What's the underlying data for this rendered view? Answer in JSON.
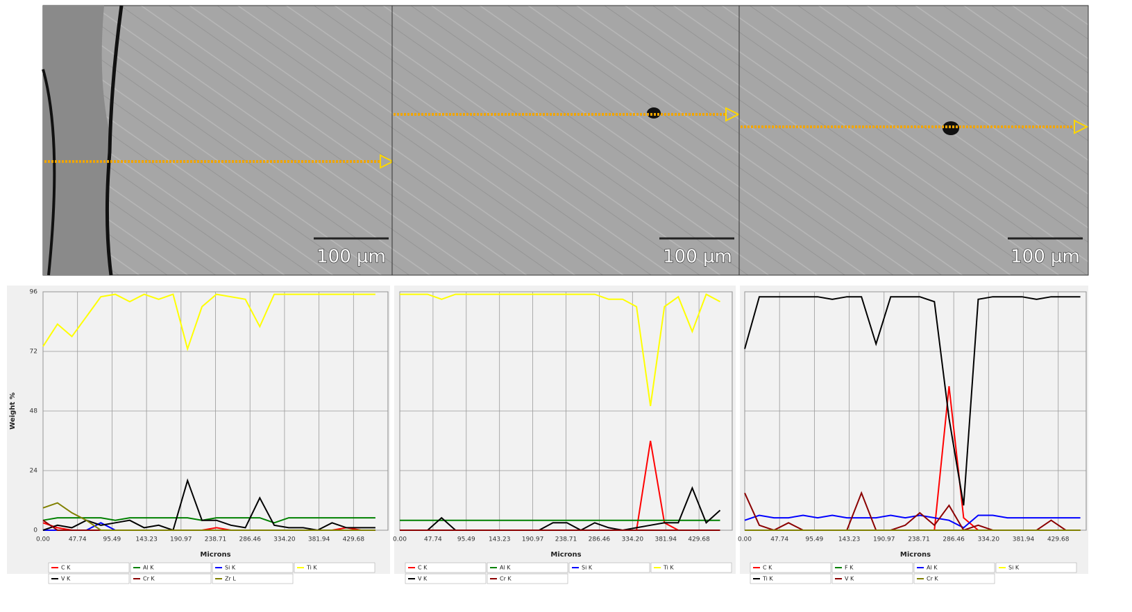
{
  "images": [
    {
      "scale_label": "100 µm"
    },
    {
      "scale_label": "100 µm"
    },
    {
      "scale_label": "100 µm"
    }
  ],
  "chart_data": [
    {
      "type": "line",
      "ylabel": "Weight %",
      "xlabel": "Microns",
      "ytick_labels": true,
      "xlim": [
        0,
        477.4
      ],
      "ylim": [
        0,
        96
      ],
      "yticks": [
        0,
        24,
        48,
        72,
        96
      ],
      "xticks": [
        {
          "value": 0,
          "label": "0.00"
        },
        47.74,
        95.49,
        143.23,
        190.97,
        238.71,
        286.46,
        {
          "value": 334.2,
          "label": "334.20"
        },
        381.94,
        429.68
      ],
      "x": [
        0,
        20,
        40,
        60,
        80,
        100,
        120,
        140,
        160,
        180,
        200,
        220,
        240,
        260,
        280,
        300,
        320,
        340,
        360,
        380,
        400,
        420,
        440,
        460
      ],
      "series": [
        {
          "name": "C K",
          "color": "#ff0000",
          "values": [
            3,
            1,
            0,
            0,
            0,
            0,
            0,
            0,
            0,
            0,
            0,
            0,
            1,
            0,
            0,
            0,
            0,
            0,
            0,
            0,
            0,
            1,
            0,
            0
          ]
        },
        {
          "name": "Al K",
          "color": "#008000",
          "values": [
            4,
            5,
            5,
            5,
            5,
            4,
            5,
            5,
            5,
            5,
            5,
            4,
            5,
            5,
            5,
            5,
            3,
            5,
            5,
            5,
            5,
            5,
            5,
            5
          ]
        },
        {
          "name": "Si K",
          "color": "#0000ff",
          "values": [
            0,
            0,
            0,
            0,
            3,
            0,
            0,
            0,
            0,
            0,
            0,
            0,
            0,
            0,
            0,
            0,
            0,
            0,
            0,
            0,
            0,
            0,
            0,
            0
          ]
        },
        {
          "name": "Ti K",
          "color": "#ffff00",
          "values": [
            74,
            83,
            78,
            86,
            94,
            95,
            92,
            95,
            93,
            95,
            73,
            90,
            95,
            94,
            93,
            82,
            95,
            95,
            95,
            95,
            95,
            95,
            95,
            95
          ]
        },
        {
          "name": "V K",
          "color": "#000000",
          "values": [
            0,
            2,
            1,
            4,
            2,
            3,
            4,
            1,
            2,
            0,
            20,
            4,
            4,
            2,
            1,
            13,
            2,
            1,
            1,
            0,
            3,
            1,
            1,
            1
          ]
        },
        {
          "name": "Cr K",
          "color": "#8b0000",
          "values": [
            4,
            0,
            0,
            0,
            0,
            0,
            0,
            0,
            0,
            0,
            0,
            0,
            0,
            0,
            0,
            0,
            0,
            0,
            0,
            0,
            0,
            0,
            0,
            0
          ]
        },
        {
          "name": "Zr L",
          "color": "#808000",
          "values": [
            9,
            11,
            7,
            4,
            0,
            0,
            0,
            0,
            0,
            0,
            0,
            0,
            0,
            0,
            0,
            0,
            0,
            0,
            0,
            0,
            0,
            0,
            0,
            0
          ]
        }
      ]
    },
    {
      "type": "line",
      "xlabel": "Microns",
      "ytick_labels": false,
      "xlim": [
        0,
        477.4
      ],
      "ylim": [
        0,
        96
      ],
      "yticks": [
        0,
        24,
        48,
        72,
        96
      ],
      "xticks": [
        {
          "value": 0,
          "label": "0.00"
        },
        47.74,
        95.49,
        143.23,
        190.97,
        238.71,
        286.46,
        {
          "value": 334.2,
          "label": "334.20"
        },
        381.94,
        429.68
      ],
      "x": [
        0,
        20,
        40,
        60,
        80,
        100,
        120,
        140,
        160,
        180,
        200,
        220,
        240,
        260,
        280,
        300,
        320,
        340,
        360,
        380,
        400,
        420,
        440,
        460
      ],
      "series": [
        {
          "name": "C K",
          "color": "#ff0000",
          "values": [
            0,
            0,
            0,
            0,
            0,
            0,
            0,
            0,
            0,
            0,
            0,
            0,
            0,
            0,
            0,
            0,
            0,
            0,
            36,
            3,
            0,
            0,
            0,
            0
          ]
        },
        {
          "name": "Al K",
          "color": "#008000",
          "values": [
            4,
            4,
            4,
            4,
            4,
            4,
            4,
            4,
            4,
            4,
            4,
            4,
            4,
            4,
            4,
            4,
            4,
            4,
            4,
            4,
            4,
            4,
            4,
            4
          ]
        },
        {
          "name": "Si K",
          "color": "#0000ff",
          "values": [
            0,
            0,
            0,
            0,
            0,
            0,
            0,
            0,
            0,
            0,
            0,
            0,
            0,
            0,
            0,
            0,
            0,
            0,
            0,
            0,
            0,
            0,
            0,
            0
          ]
        },
        {
          "name": "Ti K",
          "color": "#ffff00",
          "values": [
            95,
            95,
            95,
            93,
            95,
            95,
            95,
            95,
            95,
            95,
            95,
            95,
            95,
            95,
            95,
            93,
            93,
            90,
            50,
            90,
            94,
            80,
            95,
            92
          ]
        },
        {
          "name": "V K",
          "color": "#000000",
          "values": [
            0,
            0,
            0,
            5,
            0,
            0,
            0,
            0,
            0,
            0,
            0,
            3,
            3,
            0,
            3,
            1,
            0,
            1,
            2,
            3,
            3,
            17,
            3,
            8
          ]
        },
        {
          "name": "Cr K",
          "color": "#8b0000",
          "values": [
            0,
            0,
            0,
            0,
            0,
            0,
            0,
            0,
            0,
            0,
            0,
            0,
            0,
            0,
            0,
            0,
            0,
            0,
            0,
            0,
            0,
            0,
            0,
            0
          ]
        }
      ]
    },
    {
      "type": "line",
      "xlabel": "Microns",
      "ytick_labels": false,
      "xlim": [
        0,
        468
      ],
      "ylim": [
        0,
        96
      ],
      "yticks": [
        0,
        24,
        48,
        72,
        96
      ],
      "xticks": [
        {
          "value": 0,
          "label": "0.00"
        },
        47.74,
        95.49,
        143.23,
        190.97,
        238.71,
        286.46,
        {
          "value": 334.2,
          "label": "334.20"
        },
        381.94,
        429.68
      ],
      "x": [
        0,
        20,
        40,
        60,
        80,
        100,
        120,
        140,
        160,
        180,
        200,
        220,
        240,
        260,
        280,
        300,
        320,
        340,
        360,
        380,
        400,
        420,
        440,
        460
      ],
      "series": [
        {
          "name": "C K",
          "color": "#ff0000",
          "values": [
            0,
            0,
            0,
            0,
            0,
            0,
            0,
            0,
            0,
            0,
            0,
            0,
            0,
            0,
            58,
            5,
            0,
            0,
            0,
            0,
            0,
            0,
            0,
            0
          ]
        },
        {
          "name": "F K",
          "color": "#008000",
          "values": [
            0,
            0,
            0,
            0,
            0,
            0,
            0,
            0,
            0,
            0,
            0,
            0,
            0,
            0,
            0,
            0,
            0,
            0,
            0,
            0,
            0,
            0,
            0,
            0
          ]
        },
        {
          "name": "Al K",
          "color": "#0000ff",
          "values": [
            4,
            6,
            5,
            5,
            6,
            5,
            6,
            5,
            5,
            5,
            6,
            5,
            6,
            5,
            4,
            1,
            6,
            6,
            5,
            5,
            5,
            5,
            5,
            5
          ]
        },
        {
          "name": "Si K",
          "color": "#ffff00",
          "values": [
            0,
            0,
            0,
            0,
            0,
            0,
            0,
            0,
            0,
            0,
            0,
            0,
            0,
            0,
            0,
            0,
            0,
            0,
            0,
            0,
            0,
            0,
            0,
            0
          ]
        },
        {
          "name": "Ti K",
          "color": "#000000",
          "values": [
            73,
            94,
            94,
            94,
            94,
            94,
            93,
            94,
            94,
            75,
            94,
            94,
            94,
            92,
            45,
            10,
            93,
            94,
            94,
            94,
            93,
            94,
            94,
            94
          ]
        },
        {
          "name": "V K",
          "color": "#8b0000",
          "values": [
            15,
            2,
            0,
            3,
            0,
            0,
            0,
            0,
            15,
            0,
            0,
            2,
            7,
            2,
            10,
            0,
            2,
            0,
            0,
            0,
            0,
            4,
            0,
            0
          ]
        },
        {
          "name": "Cr K",
          "color": "#808000",
          "values": [
            0,
            0,
            0,
            0,
            0,
            0,
            0,
            0,
            0,
            0,
            0,
            0,
            0,
            0,
            0,
            0,
            0,
            0,
            0,
            0,
            0,
            0,
            0,
            0
          ]
        }
      ]
    }
  ]
}
